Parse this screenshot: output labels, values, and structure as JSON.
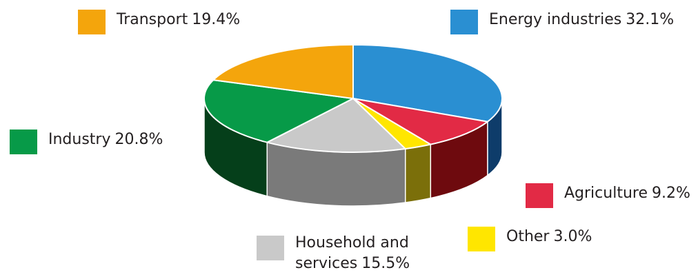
{
  "chart_data": {
    "type": "pie",
    "title": "",
    "slices": [
      {
        "label": "Energy industries",
        "value": 32.1,
        "value_label": "32.1%",
        "color": "#2a8fd2",
        "side_color": "#0e3c6a"
      },
      {
        "label": "Agriculture",
        "value": 9.2,
        "value_label": "9.2%",
        "color": "#e22a45",
        "side_color": "#6e0a0e"
      },
      {
        "label": "Other",
        "value": 3.0,
        "value_label": "3.0%",
        "color": "#ffe600",
        "side_color": "#7b6f0a"
      },
      {
        "label": "Household and services",
        "value": 15.5,
        "value_label": "15.5%",
        "color": "#c9c9c9",
        "side_color": "#7a7a7a"
      },
      {
        "label": "Industry",
        "value": 20.8,
        "value_label": "20.8%",
        "color": "#079a48",
        "side_color": "#053f1a"
      },
      {
        "label": "Transport",
        "value": 19.4,
        "value_label": "19.4%",
        "color": "#f4a50c",
        "side_color": "#9a6300"
      }
    ],
    "legend": {
      "transport": {
        "label": "Transport",
        "value": "19.4%",
        "color": "#f4a50c"
      },
      "energy": {
        "label": "Energy industries",
        "value": "32.1%",
        "color": "#2a8fd2"
      },
      "industry": {
        "label": "Industry",
        "value": "20.8%",
        "color": "#079a48"
      },
      "agriculture": {
        "label": "Agriculture",
        "value": "9.2%",
        "color": "#e22a45"
      },
      "other": {
        "label": "Other",
        "value": "3.0%",
        "color": "#ffe600"
      },
      "household": {
        "label": "Household and",
        "label2": "services",
        "value": "15.5%",
        "color": "#c9c9c9"
      }
    }
  }
}
